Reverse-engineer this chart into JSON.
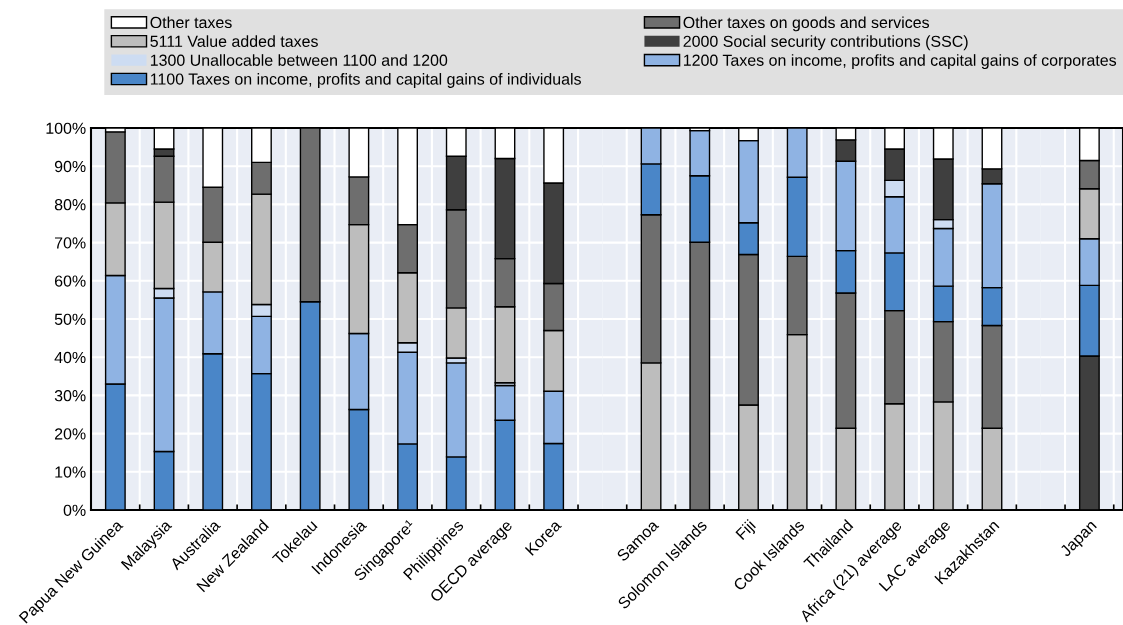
{
  "chart_data": [
    {
      "type": "bar",
      "stacked": true,
      "legend": "top",
      "grid": true,
      "categories": [
        "Papua New Guinea",
        "Malaysia",
        "Australia",
        "New Zealand",
        "Tokelau",
        "Indonesia",
        "Singapore¹",
        "Philippines",
        "OECD average",
        "Korea"
      ],
      "ylim": [
        0,
        100
      ],
      "yticks": [
        {
          "value": 0,
          "label": "0%"
        },
        {
          "value": 10,
          "label": "10%"
        },
        {
          "value": 20,
          "label": "20%"
        },
        {
          "value": 30,
          "label": "30%"
        },
        {
          "value": 40,
          "label": "40%"
        },
        {
          "value": 50,
          "label": "50%"
        },
        {
          "value": 60,
          "label": "60%"
        },
        {
          "value": 70,
          "label": "70%"
        },
        {
          "value": 80,
          "label": "80%"
        },
        {
          "value": 90,
          "label": "90%"
        },
        {
          "value": 100,
          "label": "100%"
        }
      ],
      "series": [
        {
          "name": "1100 Taxes on income, profits and capital gains of individuals",
          "color": "#4a86c8",
          "values": [
            33.0,
            15.3,
            40.9,
            35.7,
            54.5,
            26.3,
            17.3,
            13.9,
            23.5,
            17.4
          ]
        },
        {
          "name": "1200 Taxes on income, profits and capital gains of corporates",
          "color": "#8fb3e3",
          "values": [
            28.4,
            40.2,
            16.2,
            15.0,
            0,
            19.9,
            24.0,
            24.6,
            9.1,
            13.7
          ]
        },
        {
          "name": "1300 Unallocable between 1100 and 1200",
          "color": "#cddcf2",
          "values": [
            0,
            2.5,
            0,
            3.1,
            0,
            0,
            2.5,
            1.3,
            0.7,
            0
          ]
        },
        {
          "name": "5111 Value added taxes",
          "color": "#bdbdbd",
          "values": [
            19.0,
            22.6,
            13.0,
            28.9,
            0,
            28.5,
            18.3,
            13.1,
            19.9,
            15.9
          ]
        },
        {
          "name": "Other taxes on goods and services",
          "color": "#6e6e6e",
          "values": [
            18.6,
            12.0,
            14.4,
            8.3,
            45.5,
            12.5,
            12.6,
            25.7,
            12.6,
            12.3
          ]
        },
        {
          "name": "2000 Social security contributions (SSC)",
          "color": "#3f3f3f",
          "values": [
            0,
            1.9,
            0,
            0,
            0,
            0,
            0,
            14.0,
            26.2,
            26.3
          ]
        },
        {
          "name": "Other taxes",
          "color": "#ffffff",
          "values": [
            1.0,
            5.5,
            15.5,
            9.0,
            0,
            12.8,
            25.3,
            7.4,
            8.0,
            14.4
          ]
        }
      ]
    },
    {
      "type": "bar",
      "stacked": true,
      "grid": true,
      "tick_labels": "x",
      "categories": [
        "Samoa",
        "Solomon Islands",
        "Fiji",
        "Cook Islands",
        "Thailand",
        "Africa (21) average",
        "LAC average",
        "Kazakhstan"
      ],
      "ylim": [
        0,
        100
      ],
      "yticks": [
        {
          "value": 0,
          "label": null
        },
        {
          "value": 10,
          "label": null
        },
        {
          "value": 20,
          "label": null
        },
        {
          "value": 30,
          "label": null
        },
        {
          "value": 40,
          "label": null
        },
        {
          "value": 50,
          "label": null
        },
        {
          "value": 60,
          "label": null
        },
        {
          "value": 70,
          "label": null
        },
        {
          "value": 80,
          "label": null
        },
        {
          "value": 90,
          "label": null
        },
        {
          "value": 100,
          "label": null
        }
      ],
      "series": [
        {
          "name": "5111 Value added taxes",
          "color": "#bdbdbd",
          "values": [
            38.5,
            0,
            27.5,
            45.9,
            21.4,
            27.8,
            28.3,
            21.4
          ]
        },
        {
          "name": "Other taxes on goods and services",
          "color": "#6e6e6e",
          "values": [
            38.8,
            70.1,
            39.4,
            20.5,
            35.4,
            24.4,
            21.0,
            26.9
          ]
        },
        {
          "name": "1100 Taxes on income, profits and capital gains of individuals",
          "color": "#4a86c8",
          "values": [
            13.3,
            17.4,
            8.3,
            20.7,
            11.1,
            15.1,
            9.3,
            9.9
          ]
        },
        {
          "name": "1200 Taxes on income, profits and capital gains of corporates",
          "color": "#8fb3e3",
          "values": [
            9.4,
            11.8,
            21.5,
            12.9,
            23.4,
            14.7,
            15.1,
            27.2
          ]
        },
        {
          "name": "1300 Unallocable between 1100 and 1200",
          "color": "#cddcf2",
          "values": [
            0,
            0,
            0,
            0,
            0,
            4.3,
            2.3,
            0
          ]
        },
        {
          "name": "2000 Social security contributions (SSC)",
          "color": "#3f3f3f",
          "values": [
            0,
            0,
            0,
            0,
            5.6,
            8.2,
            15.9,
            3.9
          ]
        },
        {
          "name": "Other taxes",
          "color": "#ffffff",
          "values": [
            0,
            0.7,
            3.3,
            0,
            3.1,
            5.5,
            8.1,
            10.7
          ]
        }
      ]
    },
    {
      "type": "bar",
      "stacked": true,
      "grid": true,
      "tick_labels": "x",
      "categories": [
        "Japan"
      ],
      "ylim": [
        0,
        100
      ],
      "yticks": [
        {
          "value": 0,
          "label": null
        },
        {
          "value": 10,
          "label": null
        },
        {
          "value": 20,
          "label": null
        },
        {
          "value": 30,
          "label": null
        },
        {
          "value": 40,
          "label": null
        },
        {
          "value": 50,
          "label": null
        },
        {
          "value": 60,
          "label": null
        },
        {
          "value": 70,
          "label": null
        },
        {
          "value": 80,
          "label": null
        },
        {
          "value": 90,
          "label": null
        },
        {
          "value": 100,
          "label": null
        }
      ],
      "series": [
        {
          "name": "2000 Social security contributions (SSC)",
          "color": "#3f3f3f",
          "values": [
            40.3
          ]
        },
        {
          "name": "1100 Taxes on income, profits and capital gains of individuals",
          "color": "#4a86c8",
          "values": [
            18.5
          ]
        },
        {
          "name": "1200 Taxes on income, profits and capital gains of corporates",
          "color": "#8fb3e3",
          "values": [
            12.2
          ]
        },
        {
          "name": "5111 Value added taxes",
          "color": "#bdbdbd",
          "values": [
            13.1
          ]
        },
        {
          "name": "Other taxes on goods and services",
          "color": "#6e6e6e",
          "values": [
            7.4
          ]
        },
        {
          "name": "Other taxes",
          "color": "#ffffff",
          "values": [
            8.5
          ]
        }
      ]
    }
  ]
}
